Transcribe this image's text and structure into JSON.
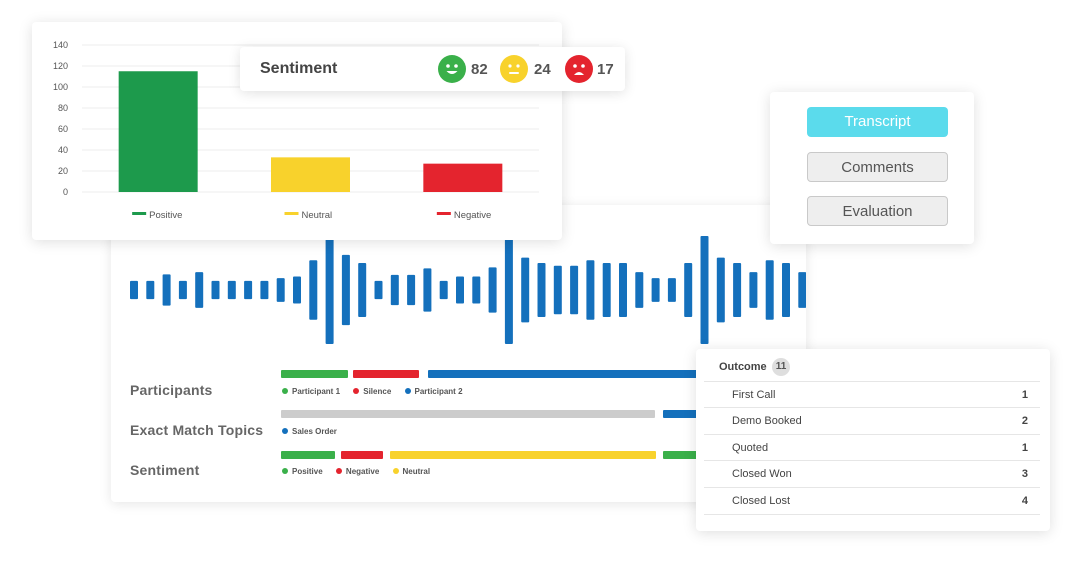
{
  "chart_data": {
    "type": "bar",
    "categories": [
      "Positive",
      "Neutral",
      "Negative"
    ],
    "values": [
      115,
      33,
      27
    ],
    "colors": [
      "#1d9a4c",
      "#f8d22c",
      "#e4242e"
    ],
    "legend": [
      "Positive",
      "Neutral",
      "Negative"
    ],
    "legend_position": "bottom",
    "ylim": [
      0,
      140
    ],
    "yticks": [
      0,
      20,
      40,
      60,
      80,
      100,
      120,
      140
    ],
    "grid": true,
    "title": "",
    "xlabel": "",
    "ylabel": ""
  },
  "sentiment_summary": {
    "title": "Sentiment",
    "items": [
      {
        "name": "positive-face-icon",
        "count": "82",
        "color": "#3ab04a"
      },
      {
        "name": "neutral-face-icon",
        "count": "24",
        "color": "#f8d22c"
      },
      {
        "name": "negative-face-icon",
        "count": "17",
        "color": "#e4242e"
      }
    ]
  },
  "tabs": [
    {
      "label": "Transcript",
      "active": true
    },
    {
      "label": "Comments",
      "active": false
    },
    {
      "label": "Evaluation",
      "active": false
    }
  ],
  "waveform": {
    "color": "#1470bc",
    "amplitudes": [
      0.17,
      0.17,
      0.29,
      0.17,
      0.33,
      0.17,
      0.17,
      0.17,
      0.17,
      0.22,
      0.25,
      0.55,
      1.0,
      0.65,
      0.5,
      0.17,
      0.28,
      0.28,
      0.4,
      0.17,
      0.25,
      0.25,
      0.42,
      1.0,
      0.6,
      0.5,
      0.45,
      0.45,
      0.55,
      0.5,
      0.5,
      0.33,
      0.22,
      0.22,
      0.5,
      1.0,
      0.6,
      0.5,
      0.33,
      0.55,
      0.5,
      0.33,
      0.22
    ]
  },
  "timelines": {
    "participants": {
      "label": "Participants",
      "legend": [
        {
          "text": "Participant 1",
          "color": "#3ab04a"
        },
        {
          "text": "Silence",
          "color": "#e4242e"
        },
        {
          "text": "Participant 2",
          "color": "#1470bc"
        }
      ]
    },
    "topics": {
      "label": "Exact Match Topics",
      "legend": [
        {
          "text": "Sales Order",
          "color": "#1470bc"
        }
      ]
    },
    "sentiment": {
      "label": "Sentiment",
      "legend": [
        {
          "text": "Positive",
          "color": "#3ab04a"
        },
        {
          "text": "Negative",
          "color": "#e4242e"
        },
        {
          "text": "Neutral",
          "color": "#f8d22c"
        }
      ]
    }
  },
  "outcome": {
    "title": "Outcome",
    "count": "11",
    "rows": [
      {
        "name": "First Call",
        "value": "1"
      },
      {
        "name": "Demo Booked",
        "value": "2"
      },
      {
        "name": "Quoted",
        "value": "1"
      },
      {
        "name": "Closed Won",
        "value": "3"
      },
      {
        "name": "Closed Lost",
        "value": "4"
      }
    ]
  }
}
